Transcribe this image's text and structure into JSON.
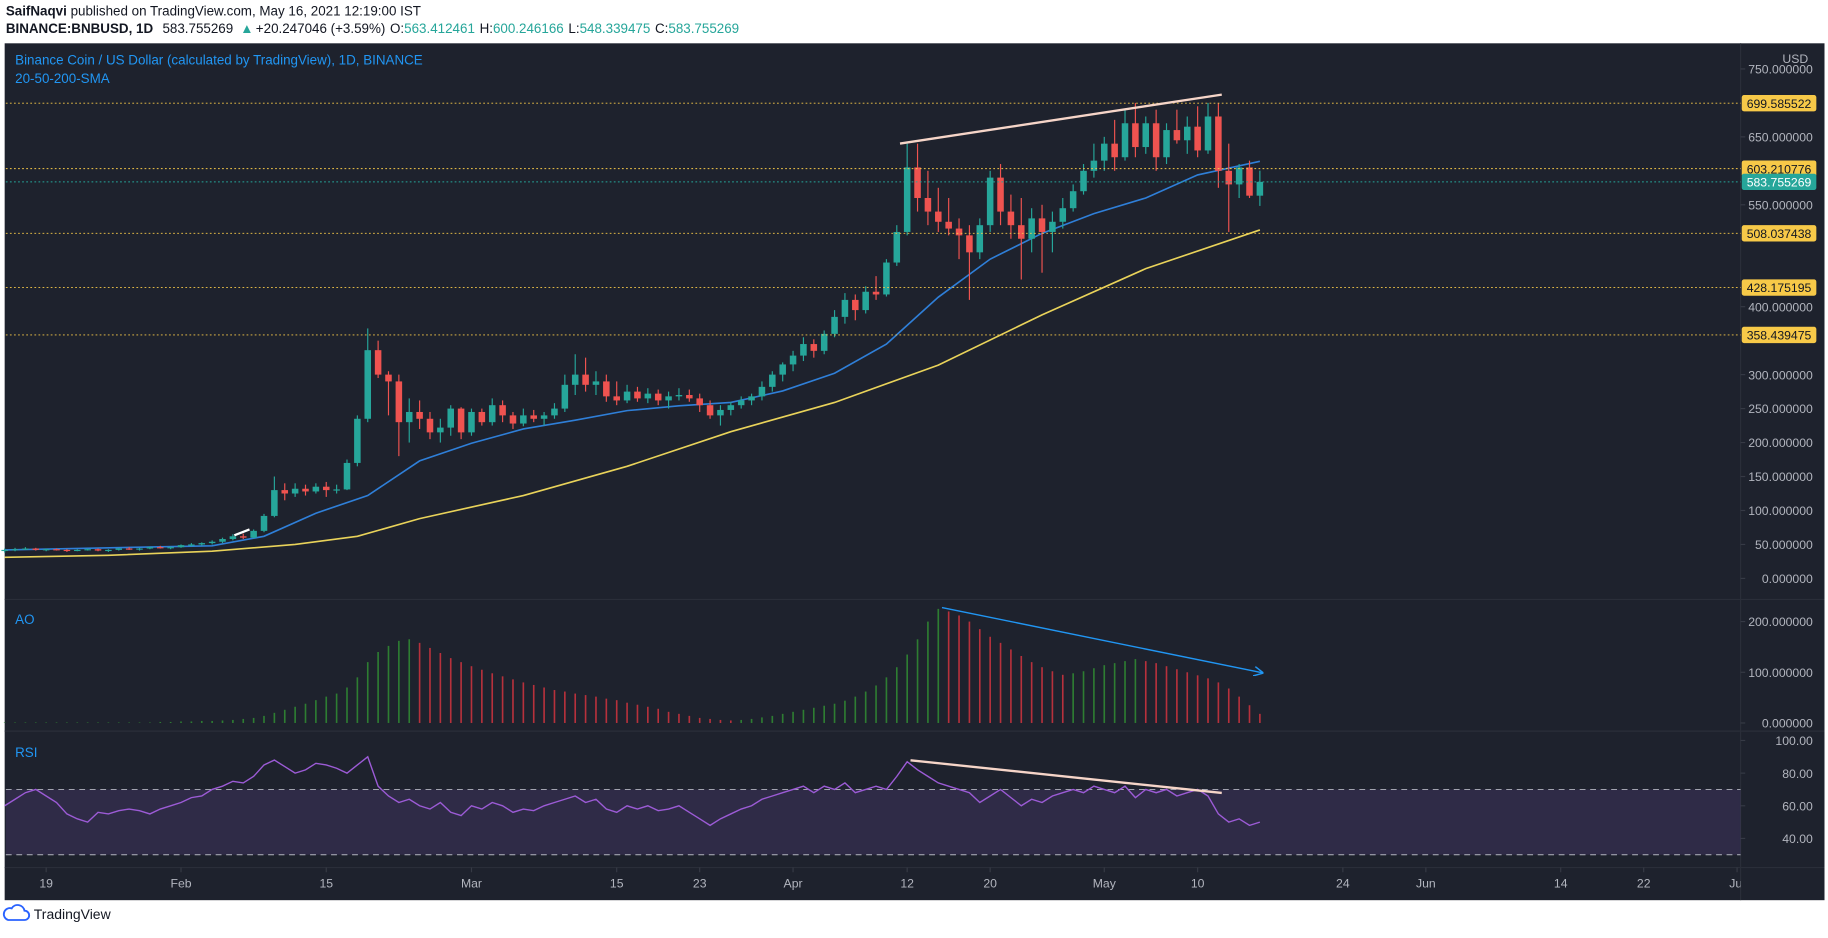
{
  "header": {
    "author": "SaifNaqvi",
    "published": " published on TradingView.com, May 16, 2021 12:19:00 IST",
    "symbol": "BINANCE:BNBUSD, 1D",
    "last": "583.755269",
    "change": "+20.247046 (+3.59%)",
    "ohlc": [
      {
        "label": "O:",
        "value": "563.412461"
      },
      {
        "label": "H:",
        "value": "600.246166"
      },
      {
        "label": "L:",
        "value": "548.339475"
      },
      {
        "label": "C:",
        "value": "583.755269"
      }
    ]
  },
  "footer": "TradingView",
  "chart_data": {
    "type": "candlestick",
    "title": "Binance Coin / US Dollar (calculated by TradingView), 1D, BINANCE",
    "subtitle": "20-50-200-SMA",
    "unit": "USD",
    "grid": false,
    "up_color": "#26a69a",
    "down_color": "#ef5350",
    "xlim": [
      "2021-01-15",
      "2021-07-01"
    ],
    "xticks": [
      {
        "value": "2021-01-19",
        "label": "19"
      },
      {
        "value": "2021-02-01",
        "label": "Feb"
      },
      {
        "value": "2021-02-15",
        "label": "15"
      },
      {
        "value": "2021-03-01",
        "label": "Mar"
      },
      {
        "value": "2021-03-15",
        "label": "15"
      },
      {
        "value": "2021-03-23",
        "label": "23"
      },
      {
        "value": "2021-04-01",
        "label": "Apr"
      },
      {
        "value": "2021-04-12",
        "label": "12"
      },
      {
        "value": "2021-04-20",
        "label": "20"
      },
      {
        "value": "2021-05-01",
        "label": "May"
      },
      {
        "value": "2021-05-10",
        "label": "10"
      },
      {
        "value": "2021-05-24",
        "label": "24"
      },
      {
        "value": "2021-06-01",
        "label": "Jun"
      },
      {
        "value": "2021-06-14",
        "label": "14"
      },
      {
        "value": "2021-06-22",
        "label": "22"
      },
      {
        "value": "2021-07-01",
        "label": "Jul"
      }
    ],
    "ylim": [
      -20.6,
      786
    ],
    "yticks": [
      {
        "value": 750,
        "label": "750.000000"
      },
      {
        "value": 650,
        "label": "650.000000"
      },
      {
        "value": 550,
        "label": "550.000000"
      },
      {
        "value": 400,
        "label": "400.000000"
      },
      {
        "value": 300,
        "label": "300.000000"
      },
      {
        "value": 250,
        "label": "250.000000"
      },
      {
        "value": 200,
        "label": "200.000000"
      },
      {
        "value": 150,
        "label": "150.000000"
      },
      {
        "value": 100,
        "label": "100.000000"
      },
      {
        "value": 50,
        "label": "50.000000"
      },
      {
        "value": 0,
        "label": "0.000000"
      }
    ],
    "levels": [
      699.585522,
      603.210776,
      508.037438,
      428.175195,
      358.439475
    ],
    "level_color": "#f7c948",
    "last_price": 583.755269,
    "x": [
      "2021-01-15",
      "2021-01-16",
      "2021-01-17",
      "2021-01-18",
      "2021-01-19",
      "2021-01-20",
      "2021-01-21",
      "2021-01-22",
      "2021-01-23",
      "2021-01-24",
      "2021-01-25",
      "2021-01-26",
      "2021-01-27",
      "2021-01-28",
      "2021-01-29",
      "2021-01-30",
      "2021-01-31",
      "2021-02-01",
      "2021-02-02",
      "2021-02-03",
      "2021-02-04",
      "2021-02-05",
      "2021-02-06",
      "2021-02-07",
      "2021-02-08",
      "2021-02-09",
      "2021-02-10",
      "2021-02-11",
      "2021-02-12",
      "2021-02-13",
      "2021-02-14",
      "2021-02-15",
      "2021-02-16",
      "2021-02-17",
      "2021-02-18",
      "2021-02-19",
      "2021-02-20",
      "2021-02-21",
      "2021-02-22",
      "2021-02-23",
      "2021-02-24",
      "2021-02-25",
      "2021-02-26",
      "2021-02-27",
      "2021-02-28",
      "2021-03-01",
      "2021-03-02",
      "2021-03-03",
      "2021-03-04",
      "2021-03-05",
      "2021-03-06",
      "2021-03-07",
      "2021-03-08",
      "2021-03-09",
      "2021-03-10",
      "2021-03-11",
      "2021-03-12",
      "2021-03-13",
      "2021-03-14",
      "2021-03-15",
      "2021-03-16",
      "2021-03-17",
      "2021-03-18",
      "2021-03-19",
      "2021-03-20",
      "2021-03-21",
      "2021-03-22",
      "2021-03-23",
      "2021-03-24",
      "2021-03-25",
      "2021-03-26",
      "2021-03-27",
      "2021-03-28",
      "2021-03-29",
      "2021-03-30",
      "2021-03-31",
      "2021-04-01",
      "2021-04-02",
      "2021-04-03",
      "2021-04-04",
      "2021-04-05",
      "2021-04-06",
      "2021-04-07",
      "2021-04-08",
      "2021-04-09",
      "2021-04-10",
      "2021-04-11",
      "2021-04-12",
      "2021-04-13",
      "2021-04-14",
      "2021-04-15",
      "2021-04-16",
      "2021-04-17",
      "2021-04-18",
      "2021-04-19",
      "2021-04-20",
      "2021-04-21",
      "2021-04-22",
      "2021-04-23",
      "2021-04-24",
      "2021-04-25",
      "2021-04-26",
      "2021-04-27",
      "2021-04-28",
      "2021-04-29",
      "2021-04-30",
      "2021-05-01",
      "2021-05-02",
      "2021-05-03",
      "2021-05-04",
      "2021-05-05",
      "2021-05-06",
      "2021-05-07",
      "2021-05-08",
      "2021-05-09",
      "2021-05-10",
      "2021-05-11",
      "2021-05-12",
      "2021-05-13",
      "2021-05-14",
      "2021-05-15",
      "2021-05-16"
    ],
    "ohlc": [
      [
        41,
        44,
        38,
        42
      ],
      [
        42,
        45,
        40,
        43
      ],
      [
        43,
        46,
        42,
        44
      ],
      [
        44,
        45,
        41,
        42
      ],
      [
        42,
        44,
        40,
        43
      ],
      [
        43,
        44,
        41,
        42
      ],
      [
        42,
        43,
        39,
        41
      ],
      [
        41,
        43,
        40,
        42
      ],
      [
        42,
        44,
        41,
        43
      ],
      [
        43,
        44,
        40,
        41
      ],
      [
        41,
        43,
        39,
        42
      ],
      [
        42,
        45,
        41,
        44
      ],
      [
        44,
        46,
        42,
        43
      ],
      [
        43,
        45,
        41,
        44
      ],
      [
        44,
        47,
        43,
        46
      ],
      [
        46,
        48,
        44,
        45
      ],
      [
        45,
        47,
        43,
        46
      ],
      [
        46,
        50,
        45,
        49
      ],
      [
        49,
        52,
        47,
        50
      ],
      [
        50,
        53,
        48,
        52
      ],
      [
        52,
        56,
        50,
        54
      ],
      [
        54,
        60,
        52,
        58
      ],
      [
        58,
        65,
        56,
        62
      ],
      [
        62,
        66,
        58,
        60
      ],
      [
        60,
        72,
        59,
        70
      ],
      [
        70,
        95,
        68,
        92
      ],
      [
        92,
        150,
        90,
        130
      ],
      [
        130,
        140,
        115,
        125
      ],
      [
        125,
        140,
        120,
        132
      ],
      [
        132,
        138,
        122,
        128
      ],
      [
        128,
        140,
        125,
        135
      ],
      [
        135,
        142,
        120,
        130
      ],
      [
        130,
        138,
        125,
        131
      ],
      [
        131,
        175,
        130,
        170
      ],
      [
        170,
        240,
        165,
        235
      ],
      [
        235,
        368,
        230,
        336
      ],
      [
        336,
        350,
        295,
        300
      ],
      [
        300,
        305,
        240,
        290
      ],
      [
        290,
        300,
        180,
        230
      ],
      [
        230,
        265,
        200,
        245
      ],
      [
        245,
        262,
        220,
        235
      ],
      [
        235,
        245,
        205,
        215
      ],
      [
        215,
        235,
        200,
        222
      ],
      [
        222,
        255,
        210,
        250
      ],
      [
        250,
        252,
        205,
        215
      ],
      [
        215,
        250,
        210,
        245
      ],
      [
        245,
        250,
        225,
        230
      ],
      [
        230,
        265,
        225,
        255
      ],
      [
        255,
        262,
        230,
        240
      ],
      [
        240,
        245,
        220,
        228
      ],
      [
        228,
        250,
        224,
        240
      ],
      [
        240,
        248,
        230,
        235
      ],
      [
        235,
        245,
        225,
        240
      ],
      [
        240,
        258,
        235,
        250
      ],
      [
        250,
        300,
        245,
        285
      ],
      [
        285,
        330,
        270,
        300
      ],
      [
        300,
        325,
        275,
        285
      ],
      [
        285,
        305,
        270,
        290
      ],
      [
        290,
        300,
        260,
        268
      ],
      [
        268,
        290,
        255,
        262
      ],
      [
        262,
        285,
        258,
        275
      ],
      [
        275,
        282,
        260,
        265
      ],
      [
        265,
        280,
        258,
        272
      ],
      [
        272,
        278,
        255,
        262
      ],
      [
        262,
        275,
        250,
        268
      ],
      [
        268,
        280,
        262,
        270
      ],
      [
        270,
        278,
        260,
        265
      ],
      [
        265,
        272,
        245,
        255
      ],
      [
        255,
        262,
        235,
        240
      ],
      [
        240,
        255,
        225,
        248
      ],
      [
        248,
        260,
        240,
        255
      ],
      [
        255,
        268,
        250,
        262
      ],
      [
        262,
        272,
        255,
        268
      ],
      [
        268,
        290,
        262,
        282
      ],
      [
        282,
        305,
        275,
        300
      ],
      [
        300,
        318,
        290,
        315
      ],
      [
        315,
        335,
        305,
        328
      ],
      [
        328,
        355,
        320,
        345
      ],
      [
        345,
        352,
        325,
        335
      ],
      [
        335,
        365,
        330,
        360
      ],
      [
        360,
        395,
        355,
        385
      ],
      [
        385,
        420,
        375,
        410
      ],
      [
        410,
        418,
        380,
        395
      ],
      [
        395,
        430,
        390,
        422
      ],
      [
        422,
        445,
        410,
        418
      ],
      [
        418,
        470,
        415,
        465
      ],
      [
        465,
        520,
        460,
        510
      ],
      [
        510,
        640,
        505,
        605
      ],
      [
        605,
        640,
        540,
        560
      ],
      [
        560,
        600,
        520,
        540
      ],
      [
        540,
        575,
        510,
        525
      ],
      [
        525,
        560,
        505,
        515
      ],
      [
        515,
        530,
        470,
        505
      ],
      [
        505,
        520,
        410,
        480
      ],
      [
        480,
        530,
        470,
        520
      ],
      [
        520,
        600,
        510,
        590
      ],
      [
        590,
        610,
        520,
        540
      ],
      [
        540,
        565,
        500,
        520
      ],
      [
        520,
        560,
        440,
        500
      ],
      [
        500,
        545,
        480,
        530
      ],
      [
        530,
        550,
        450,
        510
      ],
      [
        510,
        540,
        480,
        525
      ],
      [
        525,
        560,
        515,
        545
      ],
      [
        545,
        580,
        540,
        570
      ],
      [
        570,
        610,
        565,
        600
      ],
      [
        600,
        640,
        590,
        615
      ],
      [
        615,
        650,
        600,
        640
      ],
      [
        640,
        675,
        600,
        620
      ],
      [
        620,
        690,
        615,
        670
      ],
      [
        670,
        700,
        620,
        635
      ],
      [
        635,
        680,
        625,
        670
      ],
      [
        670,
        690,
        600,
        620
      ],
      [
        620,
        670,
        610,
        660
      ],
      [
        660,
        690,
        640,
        645
      ],
      [
        645,
        680,
        625,
        665
      ],
      [
        665,
        695,
        620,
        630
      ],
      [
        630,
        700,
        625,
        680
      ],
      [
        680,
        700,
        575,
        600
      ],
      [
        600,
        640,
        510,
        580
      ],
      [
        580,
        610,
        560,
        605
      ],
      [
        605,
        615,
        560,
        563.412461
      ],
      [
        563.412461,
        600.246166,
        548.339475,
        583.755269
      ]
    ],
    "overlays": [
      {
        "color": "#2f7fd8",
        "x": [
          "2021-01-15",
          "2021-02-04",
          "2021-02-09",
          "2021-02-14",
          "2021-02-19",
          "2021-02-24",
          "2021-03-01",
          "2021-03-06",
          "2021-03-11",
          "2021-03-16",
          "2021-03-21",
          "2021-03-26",
          "2021-03-31",
          "2021-04-05",
          "2021-04-10",
          "2021-04-15",
          "2021-04-20",
          "2021-04-25",
          "2021-04-30",
          "2021-05-05",
          "2021-05-10",
          "2021-05-16"
        ],
        "values": [
          42,
          48,
          62,
          96,
          122,
          173,
          199,
          220,
          233,
          247,
          254,
          259,
          276,
          302,
          345,
          414,
          470,
          508,
          537,
          560,
          594,
          614
        ]
      },
      {
        "color": "#e9d35a",
        "x": [
          "2021-01-15",
          "2021-01-25",
          "2021-02-04",
          "2021-02-12",
          "2021-02-18",
          "2021-02-24",
          "2021-03-06",
          "2021-03-16",
          "2021-03-26",
          "2021-04-05",
          "2021-04-15",
          "2021-04-25",
          "2021-05-05",
          "2021-05-16"
        ],
        "values": [
          31,
          34,
          40,
          50,
          62,
          88,
          122,
          165,
          216,
          259,
          314,
          388,
          456,
          513
        ]
      }
    ],
    "indicators": [
      {
        "type": "histogram",
        "title": "AO",
        "up_color": "#2e7d32",
        "down_color": "#b7313c",
        "ylim": [
          -11.5,
          234.5
        ],
        "yticks": [
          {
            "value": 200,
            "label": "200.000000"
          },
          {
            "value": 100,
            "label": "100.000000"
          },
          {
            "value": 0,
            "label": "0.000000"
          }
        ],
        "values": [
          1,
          1,
          1,
          1,
          1,
          1,
          1,
          1,
          1,
          1,
          1,
          1,
          1,
          1,
          1,
          2,
          2,
          3,
          3,
          4,
          4,
          5,
          6,
          8,
          10,
          14,
          20,
          26,
          32,
          38,
          45,
          52,
          58,
          70,
          90,
          120,
          140,
          152,
          162,
          165,
          158,
          148,
          138,
          128,
          120,
          112,
          105,
          98,
          92,
          86,
          80,
          75,
          70,
          65,
          62,
          58,
          55,
          52,
          48,
          45,
          40,
          36,
          32,
          28,
          22,
          18,
          14,
          10,
          8,
          6,
          5,
          6,
          8,
          11,
          14,
          18,
          22,
          26,
          30,
          34,
          38,
          44,
          52,
          62,
          74,
          90,
          110,
          135,
          165,
          200,
          225,
          220,
          212,
          200,
          185,
          170,
          158,
          145,
          132,
          120,
          110,
          102,
          95,
          98,
          102,
          108,
          114,
          118,
          122,
          126,
          122,
          118,
          112,
          106,
          100,
          94,
          88,
          80,
          68,
          52,
          35,
          18
        ]
      },
      {
        "type": "line",
        "title": "RSI",
        "color": "#9c5bd6",
        "band_color": "#7e57c2",
        "ylim": [
          23.6,
          105
        ],
        "bands": [
          30,
          70
        ],
        "yticks": [
          {
            "value": 100,
            "label": "100.00"
          },
          {
            "value": 80,
            "label": "80.00"
          },
          {
            "value": 60,
            "label": "60.00"
          },
          {
            "value": 40,
            "label": "40.00"
          }
        ],
        "values": [
          60,
          64,
          68,
          70,
          66,
          62,
          55,
          52,
          50,
          56,
          55,
          57,
          58,
          57,
          55,
          58,
          60,
          62,
          65,
          66,
          70,
          72,
          75,
          74,
          78,
          85,
          88,
          84,
          80,
          82,
          86,
          85,
          83,
          80,
          85,
          90,
          72,
          66,
          62,
          64,
          60,
          58,
          62,
          56,
          54,
          60,
          58,
          62,
          60,
          56,
          58,
          57,
          60,
          62,
          64,
          66,
          62,
          64,
          58,
          56,
          60,
          58,
          60,
          57,
          58,
          60,
          56,
          52,
          48,
          52,
          55,
          58,
          60,
          64,
          66,
          68,
          70,
          72,
          68,
          72,
          70,
          74,
          68,
          70,
          72,
          70,
          78,
          87,
          82,
          78,
          74,
          72,
          70,
          68,
          62,
          66,
          70,
          65,
          60,
          64,
          62,
          66,
          68,
          70,
          68,
          72,
          70,
          68,
          72,
          65,
          70,
          68,
          70,
          66,
          68,
          70,
          66,
          55,
          50,
          52,
          48,
          50
        ]
      }
    ]
  }
}
